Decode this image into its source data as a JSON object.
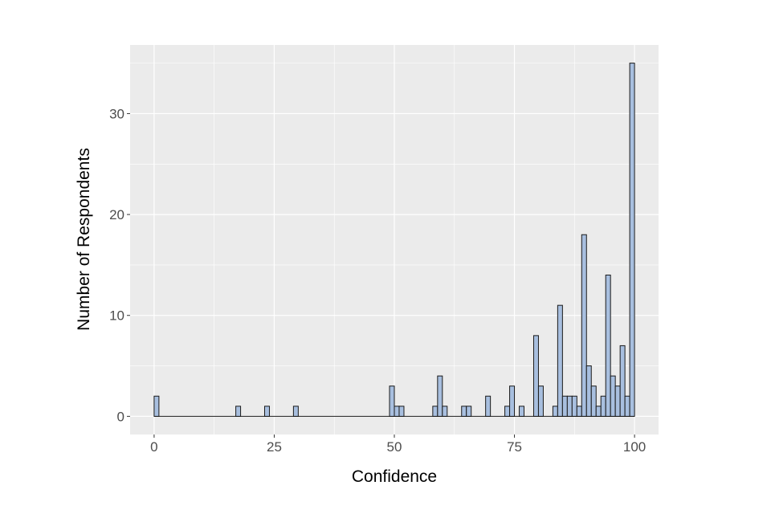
{
  "chart_data": {
    "type": "bar",
    "xlabel": "Confidence",
    "ylabel": "Number of Respondents",
    "xlim": [
      -5,
      105
    ],
    "ylim": [
      -1.8,
      36.8
    ],
    "x_ticks": [
      0,
      25,
      50,
      75,
      100
    ],
    "y_ticks": [
      0,
      10,
      20,
      30
    ],
    "grid": true,
    "bin_width": 1,
    "colors": {
      "bar_fill": "#a8bfdf",
      "bar_stroke": "#1a1a1a",
      "panel": "#ebebeb",
      "grid": "#ffffff"
    },
    "x": [
      0,
      17,
      23,
      29,
      49,
      50,
      51,
      58,
      59,
      60,
      64,
      65,
      69,
      73,
      74,
      76,
      79,
      80,
      83,
      84,
      85,
      86,
      87,
      88,
      89,
      90,
      91,
      92,
      93,
      94,
      95,
      96,
      97,
      98,
      99
    ],
    "values": [
      2,
      1,
      1,
      1,
      3,
      1,
      1,
      1,
      4,
      1,
      1,
      1,
      2,
      1,
      3,
      1,
      8,
      3,
      1,
      11,
      2,
      2,
      2,
      1,
      18,
      5,
      3,
      1,
      2,
      14,
      4,
      3,
      7,
      2,
      35
    ]
  }
}
